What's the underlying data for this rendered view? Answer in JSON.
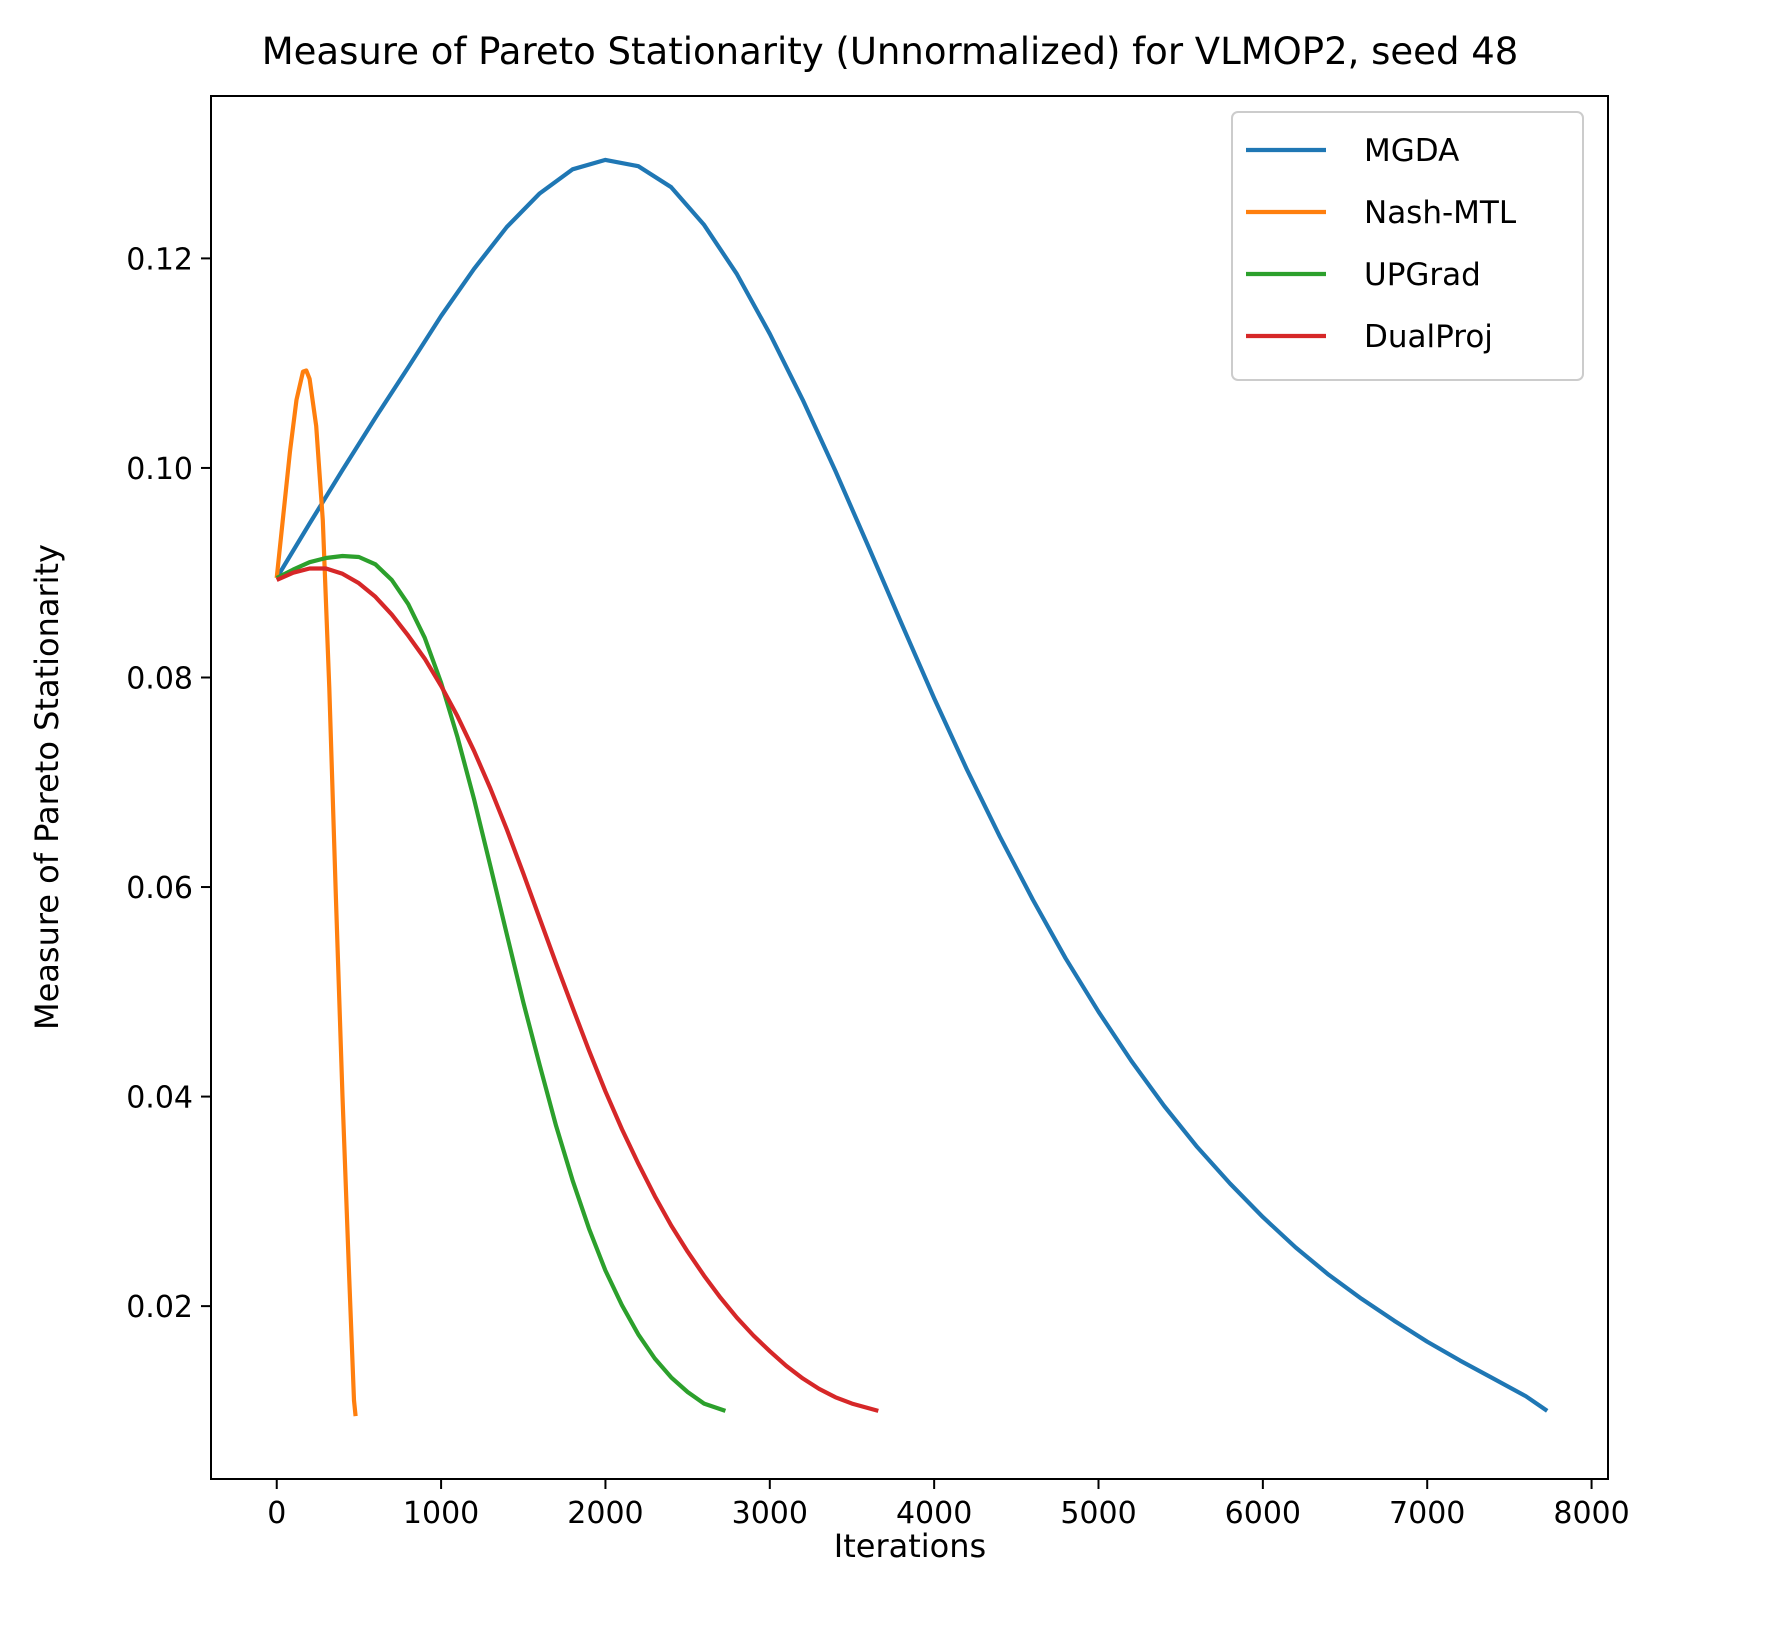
{
  "chart_data": {
    "type": "line",
    "title": "Measure of Pareto Stationarity (Unnormalized) for VLMOP2, seed 48",
    "xlabel": "Iterations",
    "ylabel": "Measure of Pareto Stationarity",
    "xlim": [
      -400,
      8100
    ],
    "ylim": [
      0.0035,
      0.1355
    ],
    "xticks": [
      0,
      1000,
      2000,
      3000,
      4000,
      5000,
      6000,
      7000,
      8000
    ],
    "xtick_labels": [
      "0",
      "1000",
      "2000",
      "3000",
      "4000",
      "5000",
      "6000",
      "7000",
      "8000"
    ],
    "yticks": [
      0.02,
      0.04,
      0.06,
      0.08,
      0.1,
      0.12
    ],
    "ytick_labels": [
      "0.02",
      "0.04",
      "0.06",
      "0.08",
      "0.10",
      "0.12"
    ],
    "grid": false,
    "legend_position": "top-right",
    "series": [
      {
        "name": "MGDA",
        "color": "#1f77b4",
        "points": [
          [
            0,
            0.0895
          ],
          [
            200,
            0.0947
          ],
          [
            400,
            0.0998
          ],
          [
            600,
            0.1048
          ],
          [
            800,
            0.1096
          ],
          [
            1000,
            0.1145
          ],
          [
            1200,
            0.119
          ],
          [
            1400,
            0.123
          ],
          [
            1600,
            0.1262
          ],
          [
            1800,
            0.1285
          ],
          [
            2000,
            0.1294
          ],
          [
            2200,
            0.1288
          ],
          [
            2400,
            0.1268
          ],
          [
            2600,
            0.1232
          ],
          [
            2800,
            0.1185
          ],
          [
            3000,
            0.1128
          ],
          [
            3200,
            0.1065
          ],
          [
            3400,
            0.0997
          ],
          [
            3600,
            0.0925
          ],
          [
            3800,
            0.0852
          ],
          [
            4000,
            0.078
          ],
          [
            4200,
            0.0712
          ],
          [
            4400,
            0.0648
          ],
          [
            4600,
            0.0588
          ],
          [
            4800,
            0.0532
          ],
          [
            5000,
            0.0481
          ],
          [
            5200,
            0.0434
          ],
          [
            5400,
            0.0391
          ],
          [
            5600,
            0.0352
          ],
          [
            5800,
            0.0317
          ],
          [
            6000,
            0.0285
          ],
          [
            6200,
            0.0256
          ],
          [
            6400,
            0.023
          ],
          [
            6600,
            0.0207
          ],
          [
            6800,
            0.0186
          ],
          [
            7000,
            0.0166
          ],
          [
            7200,
            0.0148
          ],
          [
            7400,
            0.0131
          ],
          [
            7600,
            0.0114
          ],
          [
            7730,
            0.01
          ]
        ]
      },
      {
        "name": "Nash-MTL",
        "color": "#ff7f0e",
        "points": [
          [
            0,
            0.0895
          ],
          [
            40,
            0.0955
          ],
          [
            80,
            0.1015
          ],
          [
            120,
            0.1065
          ],
          [
            160,
            0.1092
          ],
          [
            180,
            0.1093
          ],
          [
            200,
            0.1085
          ],
          [
            240,
            0.104
          ],
          [
            280,
            0.095
          ],
          [
            320,
            0.079
          ],
          [
            360,
            0.059
          ],
          [
            400,
            0.04
          ],
          [
            440,
            0.023
          ],
          [
            470,
            0.011
          ],
          [
            480,
            0.0095
          ]
        ]
      },
      {
        "name": "UPGrad",
        "color": "#2ca02c",
        "points": [
          [
            0,
            0.0895
          ],
          [
            100,
            0.0903
          ],
          [
            200,
            0.091
          ],
          [
            300,
            0.0914
          ],
          [
            400,
            0.0916
          ],
          [
            500,
            0.0915
          ],
          [
            600,
            0.0908
          ],
          [
            700,
            0.0893
          ],
          [
            800,
            0.087
          ],
          [
            900,
            0.0838
          ],
          [
            1000,
            0.0795
          ],
          [
            1100,
            0.0743
          ],
          [
            1200,
            0.0684
          ],
          [
            1300,
            0.062
          ],
          [
            1400,
            0.0555
          ],
          [
            1500,
            0.049
          ],
          [
            1600,
            0.043
          ],
          [
            1700,
            0.0372
          ],
          [
            1800,
            0.032
          ],
          [
            1900,
            0.0274
          ],
          [
            2000,
            0.0234
          ],
          [
            2100,
            0.0201
          ],
          [
            2200,
            0.0173
          ],
          [
            2300,
            0.015
          ],
          [
            2400,
            0.0132
          ],
          [
            2500,
            0.0118
          ],
          [
            2600,
            0.0107
          ],
          [
            2730,
            0.01
          ]
        ]
      },
      {
        "name": "DualProj",
        "color": "#d62728",
        "points": [
          [
            0,
            0.0893
          ],
          [
            100,
            0.09
          ],
          [
            200,
            0.0904
          ],
          [
            300,
            0.0904
          ],
          [
            400,
            0.0899
          ],
          [
            500,
            0.089
          ],
          [
            600,
            0.0877
          ],
          [
            700,
            0.086
          ],
          [
            800,
            0.084
          ],
          [
            900,
            0.0818
          ],
          [
            1000,
            0.0792
          ],
          [
            1100,
            0.0763
          ],
          [
            1200,
            0.073
          ],
          [
            1300,
            0.0694
          ],
          [
            1400,
            0.0655
          ],
          [
            1500,
            0.0613
          ],
          [
            1600,
            0.057
          ],
          [
            1700,
            0.0527
          ],
          [
            1800,
            0.0485
          ],
          [
            1900,
            0.0444
          ],
          [
            2000,
            0.0405
          ],
          [
            2100,
            0.0369
          ],
          [
            2200,
            0.0336
          ],
          [
            2300,
            0.0305
          ],
          [
            2400,
            0.0277
          ],
          [
            2500,
            0.0252
          ],
          [
            2600,
            0.0229
          ],
          [
            2700,
            0.0208
          ],
          [
            2800,
            0.0189
          ],
          [
            2900,
            0.0172
          ],
          [
            3000,
            0.0157
          ],
          [
            3100,
            0.0143
          ],
          [
            3200,
            0.0131
          ],
          [
            3300,
            0.0121
          ],
          [
            3400,
            0.0113
          ],
          [
            3500,
            0.0107
          ],
          [
            3660,
            0.01
          ]
        ]
      }
    ]
  }
}
